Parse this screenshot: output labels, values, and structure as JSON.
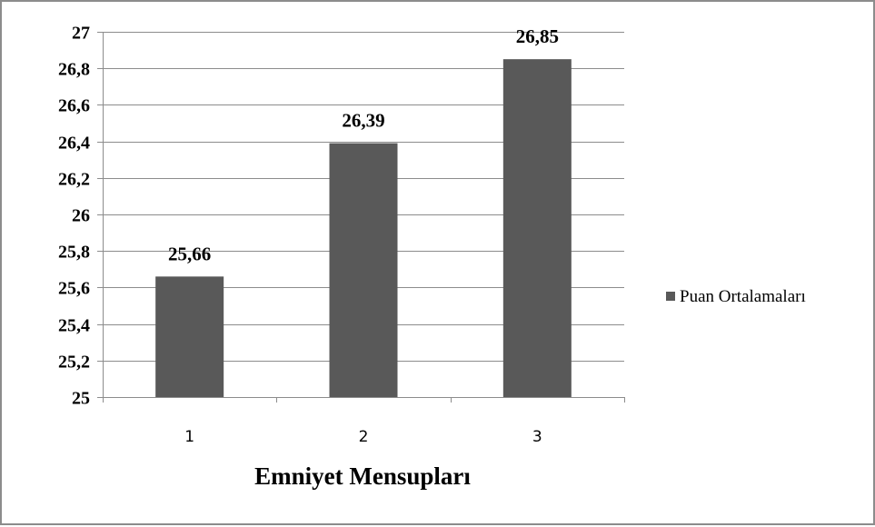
{
  "chart_data": {
    "type": "bar",
    "categories": [
      "1",
      "2",
      "3"
    ],
    "series": [
      {
        "name": "Puan Ortalamaları",
        "values": [
          25.66,
          26.39,
          26.85
        ],
        "color": "#595959"
      }
    ],
    "data_labels": [
      "25,66",
      "26,39",
      "26,85"
    ],
    "xlabel": "Emniyet Mensupları",
    "ylabel": "",
    "ylim": [
      25,
      27
    ],
    "y_ticks": [
      25,
      25.2,
      25.4,
      25.6,
      25.8,
      26,
      26.2,
      26.4,
      26.6,
      26.8,
      27
    ],
    "y_tick_labels": [
      "25",
      "25,2",
      "25,4",
      "25,6",
      "25,8",
      "26",
      "26,2",
      "26,4",
      "26,6",
      "26,8",
      "27"
    ],
    "grid": true,
    "gridline_color": "#8c8c8c",
    "legend_position": "right"
  }
}
